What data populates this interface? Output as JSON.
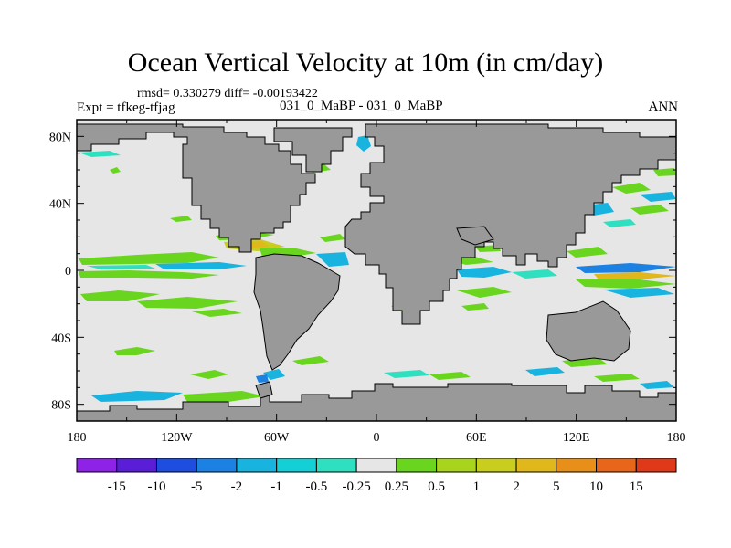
{
  "title": "Ocean Vertical Velocity at 10m (in cm/day)",
  "stats": "rmsd= 0.330279 diff= -0.00193422",
  "expt": "Expt = tfkeg-tfjag",
  "case": "031_0_MaBP - 031_0_MaBP",
  "season": "ANN",
  "axes": {
    "lat_ticks": [
      {
        "label": "80N",
        "value": 80
      },
      {
        "label": "40N",
        "value": 40
      },
      {
        "label": "0",
        "value": 0
      },
      {
        "label": "40S",
        "value": -40
      },
      {
        "label": "80S",
        "value": -80
      }
    ],
    "lon_ticks": [
      {
        "label": "180",
        "value": -180
      },
      {
        "label": "120W",
        "value": -120
      },
      {
        "label": "60W",
        "value": -60
      },
      {
        "label": "0",
        "value": 0
      },
      {
        "label": "60E",
        "value": 60
      },
      {
        "label": "120E",
        "value": 120
      },
      {
        "label": "180",
        "value": 180
      }
    ]
  },
  "colorbar": {
    "colors": [
      "#8e22e6",
      "#5a1ed8",
      "#1e4ee0",
      "#1b82e3",
      "#19b3e0",
      "#14cfd6",
      "#2ee0c0",
      "#e6e6e6",
      "#6ad51f",
      "#a8d41e",
      "#c8cd1e",
      "#e0b81c",
      "#e88f1a",
      "#e8661a",
      "#e0391a"
    ],
    "labels": [
      "-15",
      "-10",
      "-5",
      "-2",
      "-1",
      "-0.5",
      "-0.25",
      "0.25",
      "0.5",
      "1",
      "2",
      "5",
      "10",
      "15"
    ]
  },
  "colors": {
    "ocean": "#e6e6e6",
    "land": "#999999"
  }
}
